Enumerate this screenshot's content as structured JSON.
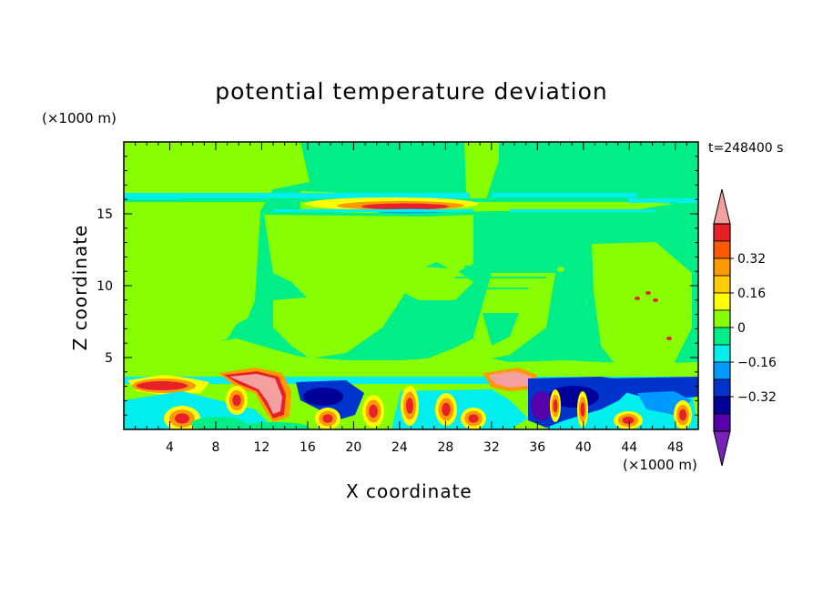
{
  "chart_data": {
    "type": "heatmap",
    "title": "potential temperature deviation",
    "xlabel": "X coordinate",
    "ylabel": "Z coordinate",
    "x_unit": "(×1000 m)",
    "z_unit": "(×1000 m)",
    "time_label": "t=248400 s",
    "xlim": [
      0,
      50
    ],
    "ylim": [
      0,
      20
    ],
    "x_ticks": [
      4,
      8,
      12,
      16,
      20,
      24,
      28,
      32,
      36,
      40,
      44,
      48
    ],
    "y_ticks": [
      5,
      10,
      15
    ],
    "colorbar": {
      "levels": [
        -0.48,
        -0.4,
        -0.32,
        -0.24,
        -0.16,
        -0.08,
        0,
        0.08,
        0.16,
        0.24,
        0.32,
        0.4,
        0.48
      ],
      "labels": [
        "0.32",
        "0.16",
        "0",
        "−0.16",
        "−0.32"
      ],
      "label_values": [
        0.32,
        0.16,
        0,
        -0.16,
        -0.32
      ],
      "colors": [
        "#f4a0a0",
        "#e8202a",
        "#ff5a00",
        "#ff9900",
        "#ffcc00",
        "#ffff00",
        "#88ff00",
        "#00ee88",
        "#00eeee",
        "#0099ff",
        "#0033cc",
        "#000099",
        "#5500aa",
        "#7722bb"
      ],
      "extend": "both"
    }
  }
}
